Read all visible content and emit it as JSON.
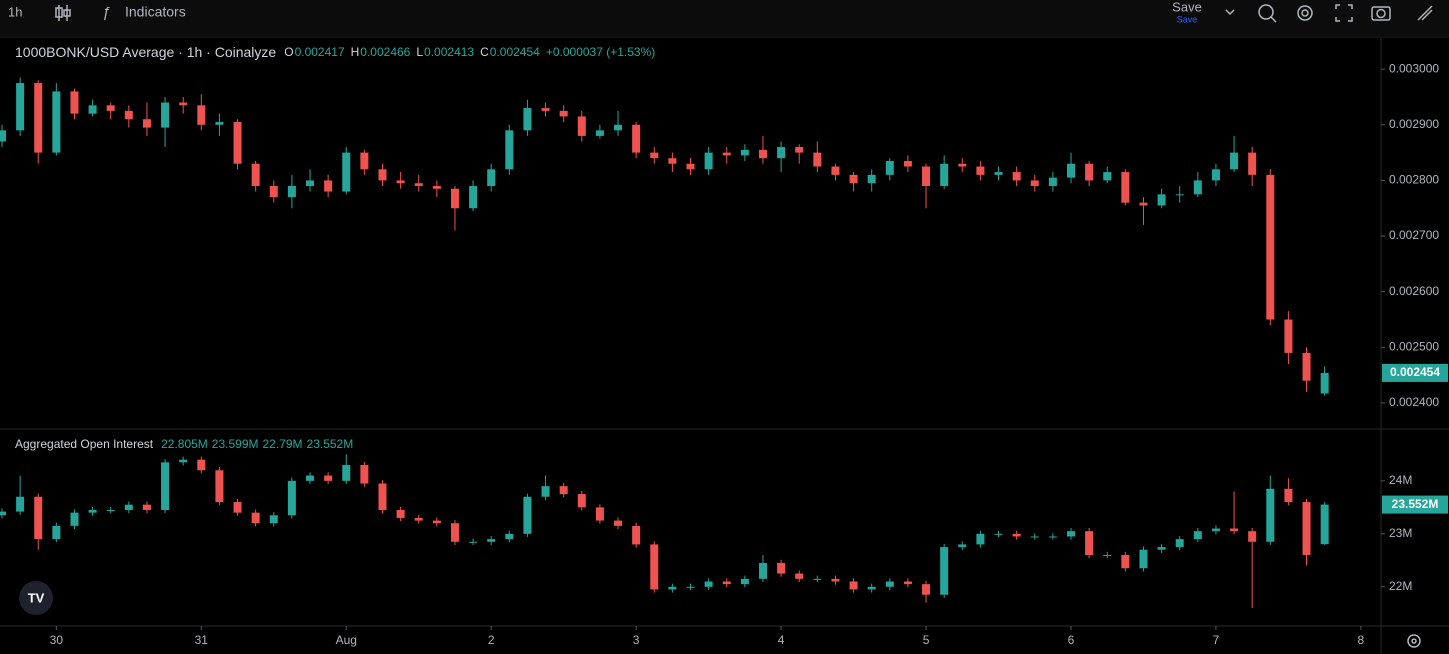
{
  "toolbar": {
    "interval": "1h",
    "indicators": "Indicators",
    "save": "Save",
    "save_sub": "Save"
  },
  "chart_data": [
    {
      "type": "candlestick",
      "title": "1000BONK/USD Average · 1h · Coinalyze",
      "ohlc": [
        {
          "label": "O",
          "value": "0.002417"
        },
        {
          "label": "H",
          "value": "0.002466"
        },
        {
          "label": "L",
          "value": "0.002413"
        },
        {
          "label": "C",
          "value": "0.002454"
        }
      ],
      "change": "+0.000037 (+1.53%)",
      "last_label": "0.002454",
      "up_color": "#26a69a",
      "down_color": "#ef5350",
      "x": [
        -9,
        -6,
        -3,
        0,
        3,
        6,
        9,
        12,
        15,
        18,
        21,
        24,
        27,
        30,
        33,
        36,
        39,
        42,
        45,
        48,
        51,
        54,
        57,
        60,
        63,
        66,
        69,
        72,
        75,
        78,
        81,
        84,
        87,
        90,
        93,
        96,
        99,
        102,
        105,
        108,
        111,
        114,
        117,
        120,
        123,
        126,
        129,
        132,
        135,
        138,
        141,
        144,
        147,
        150,
        153,
        156,
        159,
        162,
        165,
        168,
        171,
        174,
        177,
        180,
        183,
        186,
        189,
        192,
        195,
        198,
        201,
        204,
        207,
        210
      ],
      "open": [
        0.00287,
        0.00289,
        0.002975,
        0.00285,
        0.00296,
        0.00292,
        0.002935,
        0.002925,
        0.00291,
        0.002895,
        0.00294,
        0.002935,
        0.0029,
        0.002905,
        0.00283,
        0.00279,
        0.00277,
        0.00279,
        0.0028,
        0.00278,
        0.00285,
        0.00282,
        0.0028,
        0.002795,
        0.00279,
        0.002785,
        0.00275,
        0.00279,
        0.00282,
        0.00289,
        0.00293,
        0.002925,
        0.002915,
        0.00288,
        0.00289,
        0.0029,
        0.00285,
        0.00284,
        0.00283,
        0.00282,
        0.00285,
        0.002845,
        0.002855,
        0.00284,
        0.00286,
        0.00285,
        0.002825,
        0.00281,
        0.002795,
        0.00281,
        0.002835,
        0.002825,
        0.00279,
        0.00283,
        0.002825,
        0.00281,
        0.002815,
        0.0028,
        0.00279,
        0.002805,
        0.00283,
        0.0028,
        0.002815,
        0.00276,
        0.002755,
        0.002775,
        0.002775,
        0.0028,
        0.00282,
        0.00285,
        0.00281,
        0.00255,
        0.00249,
        0.002417
      ],
      "high": [
        0.0029,
        0.002985,
        0.00298,
        0.002975,
        0.002965,
        0.002945,
        0.00294,
        0.002935,
        0.00294,
        0.00295,
        0.00295,
        0.002955,
        0.00292,
        0.00291,
        0.002835,
        0.0028,
        0.00281,
        0.00282,
        0.00281,
        0.00286,
        0.002855,
        0.00283,
        0.002815,
        0.00281,
        0.0028,
        0.00279,
        0.0028,
        0.00283,
        0.0029,
        0.002945,
        0.00294,
        0.002935,
        0.002925,
        0.0029,
        0.002925,
        0.002905,
        0.00286,
        0.00285,
        0.00284,
        0.00286,
        0.00286,
        0.002865,
        0.00288,
        0.00287,
        0.002865,
        0.00287,
        0.00283,
        0.002815,
        0.00282,
        0.00284,
        0.002845,
        0.00283,
        0.002845,
        0.00284,
        0.002835,
        0.002825,
        0.002825,
        0.00281,
        0.002815,
        0.00285,
        0.002835,
        0.002825,
        0.00282,
        0.00277,
        0.002785,
        0.00279,
        0.002815,
        0.00283,
        0.00288,
        0.00286,
        0.00282,
        0.002565,
        0.0025,
        0.002466
      ],
      "low": [
        0.00286,
        0.00288,
        0.00283,
        0.002845,
        0.00291,
        0.002915,
        0.00291,
        0.002895,
        0.00288,
        0.00286,
        0.00292,
        0.00289,
        0.00288,
        0.00282,
        0.00278,
        0.00276,
        0.00275,
        0.00278,
        0.00277,
        0.002775,
        0.00281,
        0.00279,
        0.002785,
        0.00278,
        0.00277,
        0.00271,
        0.002745,
        0.00278,
        0.00281,
        0.00288,
        0.002915,
        0.002905,
        0.00287,
        0.002875,
        0.00288,
        0.00284,
        0.00283,
        0.002815,
        0.00281,
        0.00281,
        0.00283,
        0.002835,
        0.00283,
        0.002815,
        0.00283,
        0.002815,
        0.0028,
        0.00278,
        0.00278,
        0.0028,
        0.002815,
        0.00275,
        0.002785,
        0.002815,
        0.0028,
        0.0028,
        0.00279,
        0.00278,
        0.00278,
        0.002795,
        0.00279,
        0.002795,
        0.002755,
        0.00272,
        0.00275,
        0.00276,
        0.00277,
        0.00279,
        0.002815,
        0.00279,
        0.00254,
        0.00247,
        0.00242,
        0.002413
      ],
      "close": [
        0.00289,
        0.002975,
        0.00285,
        0.00296,
        0.00292,
        0.002935,
        0.002925,
        0.00291,
        0.002895,
        0.00294,
        0.002935,
        0.0029,
        0.002905,
        0.00283,
        0.00279,
        0.00277,
        0.00279,
        0.0028,
        0.00278,
        0.00285,
        0.00282,
        0.0028,
        0.002795,
        0.00279,
        0.002785,
        0.00275,
        0.00279,
        0.00282,
        0.00289,
        0.00293,
        0.002925,
        0.002915,
        0.00288,
        0.00289,
        0.0029,
        0.00285,
        0.00284,
        0.00283,
        0.00282,
        0.00285,
        0.002845,
        0.002855,
        0.00284,
        0.00286,
        0.00285,
        0.002825,
        0.00281,
        0.002795,
        0.00281,
        0.002835,
        0.002825,
        0.00279,
        0.00283,
        0.002825,
        0.00281,
        0.002815,
        0.0028,
        0.00279,
        0.002805,
        0.00283,
        0.0028,
        0.002815,
        0.00276,
        0.002755,
        0.002775,
        0.002775,
        0.0028,
        0.00282,
        0.00285,
        0.00281,
        0.00255,
        0.00249,
        0.00244,
        0.002454
      ],
      "xlim": [
        -9.33,
        219.33
      ],
      "xticks": [
        {
          "value": 0,
          "label": "30"
        },
        {
          "value": 24,
          "label": "31"
        },
        {
          "value": 48,
          "label": "Aug"
        },
        {
          "value": 72,
          "label": "2"
        },
        {
          "value": 96,
          "label": "3"
        },
        {
          "value": 120,
          "label": "4"
        },
        {
          "value": 144,
          "label": "5"
        },
        {
          "value": 168,
          "label": "6"
        },
        {
          "value": 192,
          "label": "7"
        },
        {
          "value": 216,
          "label": "8"
        }
      ],
      "ylim": [
        0.002355,
        0.003056
      ],
      "yticks": [
        {
          "value": 0.0024,
          "label": "0.002400"
        },
        {
          "value": 0.0025,
          "label": "0.002500"
        },
        {
          "value": 0.0026,
          "label": "0.002600"
        },
        {
          "value": 0.0027,
          "label": "0.002700"
        },
        {
          "value": 0.0028,
          "label": "0.002800"
        },
        {
          "value": 0.0029,
          "label": "0.002900"
        },
        {
          "value": 0.003,
          "label": "0.003000"
        }
      ]
    },
    {
      "type": "candlestick",
      "title": "Aggregated Open Interest",
      "ohlc_values": [
        "22.805M",
        "23.599M",
        "22.79M",
        "23.552M"
      ],
      "last_label": "23.552M",
      "up_color": "#26a69a",
      "down_color": "#ef5350",
      "x": [
        -9,
        -6,
        -3,
        0,
        3,
        6,
        9,
        12,
        15,
        18,
        21,
        24,
        27,
        30,
        33,
        36,
        39,
        42,
        45,
        48,
        51,
        54,
        57,
        60,
        63,
        66,
        69,
        72,
        75,
        78,
        81,
        84,
        87,
        90,
        93,
        96,
        99,
        102,
        105,
        108,
        111,
        114,
        117,
        120,
        123,
        126,
        129,
        132,
        135,
        138,
        141,
        144,
        147,
        150,
        153,
        156,
        159,
        162,
        165,
        168,
        171,
        174,
        177,
        180,
        183,
        186,
        189,
        192,
        195,
        198,
        201,
        204,
        207,
        210
      ],
      "open": [
        23.35,
        23.42,
        23.7,
        22.9,
        23.15,
        23.4,
        23.45,
        23.45,
        23.55,
        23.45,
        24.35,
        24.4,
        24.2,
        23.6,
        23.4,
        23.2,
        23.35,
        24.0,
        24.1,
        24.0,
        24.3,
        23.95,
        23.45,
        23.3,
        23.25,
        23.2,
        22.85,
        22.85,
        22.9,
        23.0,
        23.7,
        23.9,
        23.75,
        23.5,
        23.25,
        23.15,
        22.8,
        21.95,
        22.0,
        22.0,
        22.1,
        22.05,
        22.15,
        22.45,
        22.25,
        22.15,
        22.15,
        22.1,
        21.95,
        22.0,
        22.1,
        22.05,
        21.85,
        22.75,
        22.8,
        23.0,
        23.0,
        22.95,
        22.95,
        22.95,
        23.05,
        22.6,
        22.6,
        22.35,
        22.7,
        22.75,
        22.9,
        23.05,
        23.1,
        23.05,
        22.85,
        23.85,
        23.6,
        22.805
      ],
      "high": [
        23.48,
        24.1,
        23.76,
        23.21,
        23.46,
        23.51,
        23.51,
        23.61,
        23.61,
        24.41,
        24.46,
        24.46,
        24.26,
        23.66,
        23.46,
        23.41,
        24.06,
        24.16,
        24.16,
        24.5,
        24.36,
        24.01,
        23.51,
        23.36,
        23.31,
        23.26,
        22.91,
        22.96,
        23.06,
        23.76,
        24.1,
        23.96,
        23.81,
        23.56,
        23.31,
        23.21,
        22.86,
        22.06,
        22.06,
        22.16,
        22.16,
        22.21,
        22.6,
        22.51,
        22.31,
        22.21,
        22.21,
        22.16,
        22.06,
        22.16,
        22.16,
        22.11,
        22.81,
        22.86,
        23.06,
        23.06,
        23.06,
        23.01,
        23.01,
        23.11,
        23.11,
        22.66,
        22.66,
        22.76,
        22.81,
        22.96,
        23.11,
        23.16,
        23.8,
        23.11,
        24.1,
        24.05,
        23.66,
        23.599
      ],
      "low": [
        23.29,
        23.36,
        22.7,
        22.84,
        23.09,
        23.34,
        23.39,
        23.39,
        23.39,
        23.39,
        24.29,
        24.14,
        23.54,
        23.34,
        23.14,
        23.14,
        23.29,
        23.94,
        23.94,
        23.94,
        23.89,
        23.39,
        23.24,
        23.19,
        23.14,
        22.79,
        22.79,
        22.79,
        22.84,
        22.94,
        23.64,
        23.69,
        23.44,
        23.19,
        23.09,
        22.74,
        21.89,
        21.89,
        21.94,
        21.94,
        21.99,
        21.99,
        22.09,
        22.19,
        22.09,
        22.09,
        22.04,
        21.89,
        21.89,
        21.94,
        21.99,
        21.7,
        21.79,
        22.69,
        22.74,
        22.94,
        22.89,
        22.89,
        22.89,
        22.89,
        22.54,
        22.54,
        22.29,
        22.29,
        22.64,
        22.69,
        22.84,
        22.99,
        22.99,
        21.6,
        22.79,
        23.54,
        22.4,
        22.79
      ],
      "close": [
        23.42,
        23.7,
        22.9,
        23.15,
        23.4,
        23.45,
        23.45,
        23.55,
        23.45,
        24.35,
        24.4,
        24.2,
        23.6,
        23.4,
        23.2,
        23.35,
        24.0,
        24.1,
        24.0,
        24.3,
        23.95,
        23.45,
        23.3,
        23.25,
        23.2,
        22.85,
        22.85,
        22.9,
        23.0,
        23.7,
        23.9,
        23.75,
        23.5,
        23.25,
        23.15,
        22.8,
        21.95,
        22.0,
        22.0,
        22.1,
        22.05,
        22.15,
        22.45,
        22.25,
        22.15,
        22.15,
        22.1,
        21.95,
        22.0,
        22.1,
        22.05,
        21.85,
        22.75,
        22.8,
        23.0,
        23.0,
        22.95,
        22.95,
        22.95,
        23.05,
        22.6,
        22.6,
        22.35,
        22.7,
        22.75,
        22.9,
        23.05,
        23.1,
        23.05,
        22.85,
        23.85,
        23.6,
        22.6,
        23.552
      ],
      "xlim": [
        -9.33,
        219.33
      ],
      "ylim": [
        21.26,
        24.96
      ],
      "yticks": [
        {
          "value": 22,
          "label": "22M"
        },
        {
          "value": 23,
          "label": "23M"
        },
        {
          "value": 24,
          "label": "24M"
        }
      ]
    }
  ]
}
